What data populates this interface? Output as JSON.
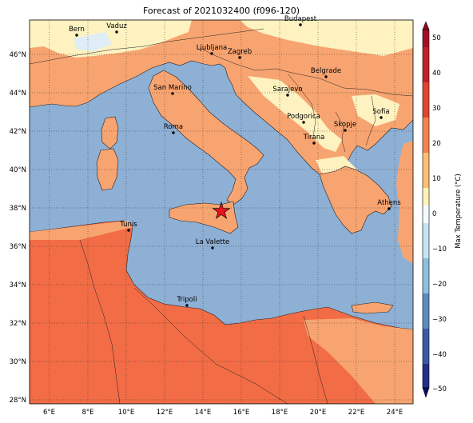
{
  "title": "Forecast of 2021032400 (f096-120)",
  "colorbar": {
    "label": "Max Temperature (°C)",
    "ticks": [
      "50",
      "40",
      "30",
      "20",
      "10",
      "0",
      "−10",
      "−20",
      "−30",
      "−40",
      "−50"
    ],
    "colors": [
      "#8b0a26",
      "#b8172e",
      "#d8382c",
      "#f46d43",
      "#fdae61",
      "#fee090",
      "#e0f3f8",
      "#abd9e9",
      "#74add1",
      "#4575b4",
      "#313695",
      "#1a1f80"
    ]
  },
  "axes": {
    "x_ticks": [
      "6°E",
      "8°E",
      "10°E",
      "12°E",
      "14°E",
      "16°E",
      "18°E",
      "20°E",
      "22°E",
      "24°E"
    ],
    "y_ticks": [
      "46°N",
      "44°N",
      "42°N",
      "40°N",
      "38°N",
      "36°N",
      "34°N",
      "32°N",
      "30°N",
      "28°N"
    ]
  },
  "cities": [
    {
      "name": "Bern"
    },
    {
      "name": "Vaduz"
    },
    {
      "name": "Budapest"
    },
    {
      "name": "Ljubljana"
    },
    {
      "name": "Zagreb"
    },
    {
      "name": "Belgrade"
    },
    {
      "name": "San Marino"
    },
    {
      "name": "Sarajevo"
    },
    {
      "name": "Sofia"
    },
    {
      "name": "Podgorica"
    },
    {
      "name": "Skopje"
    },
    {
      "name": "Roma"
    },
    {
      "name": "Tirana"
    },
    {
      "name": "Athens"
    },
    {
      "name": "Tunis"
    },
    {
      "name": "La Valette"
    },
    {
      "name": "Tripoli"
    }
  ],
  "colors": {
    "sea": "#8fb0d5",
    "land_warm": "#f8a470",
    "land_hot": "#f26c45",
    "land_mild": "#fdf2c0",
    "land_cool": "#dfeef6"
  }
}
